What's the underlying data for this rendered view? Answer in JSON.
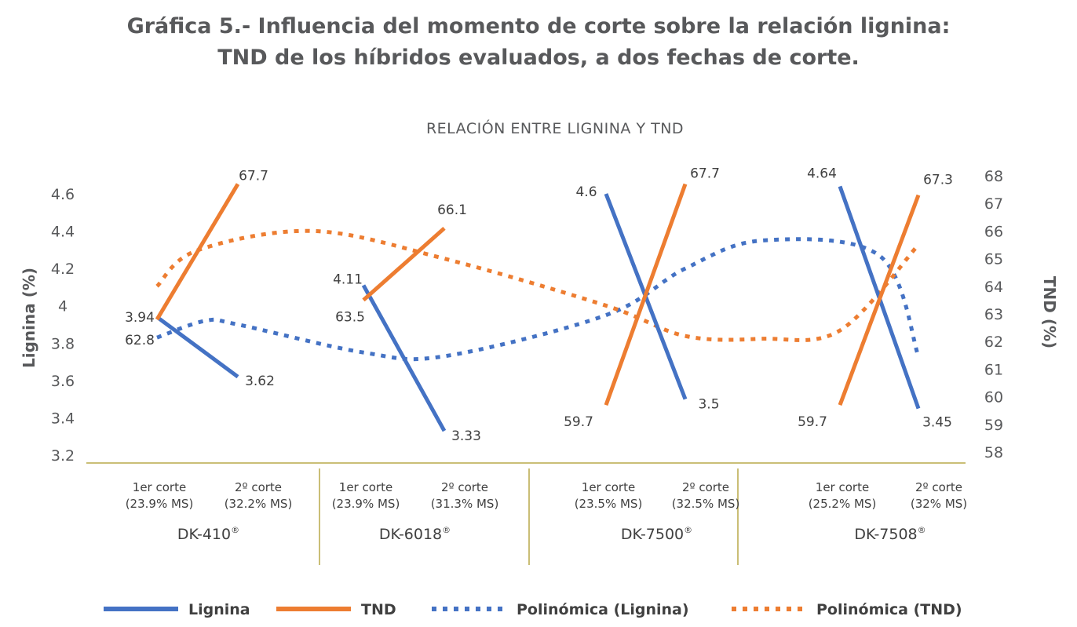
{
  "page_title": {
    "line1": "Gráfica 5.- Influencia del momento de corte sobre la relación lignina:",
    "line2": "TND de los híbridos evaluados, a dos fechas de corte."
  },
  "chart_data": {
    "type": "line",
    "title": "RELACIÓN ENTRE LIGNINA Y TND",
    "ylabel": "Lignina (%)",
    "y2label": "TND (%)",
    "ylim": [
      3.2,
      4.7
    ],
    "yticks": [
      "4.6",
      "4.4",
      "4.2",
      "4",
      "3.8",
      "3.6",
      "3.4",
      "3.2"
    ],
    "y2lim": [
      58,
      68.4
    ],
    "y2ticks": [
      "68",
      "67",
      "66",
      "65",
      "64",
      "63",
      "62",
      "61",
      "60",
      "59",
      "58"
    ],
    "groups": [
      {
        "name": "DK-410",
        "reg": "®",
        "subcategories": [
          {
            "line1": "1er corte",
            "line2": "(23.9% MS)"
          },
          {
            "line1": "2º corte",
            "line2": "(32.2% MS)"
          }
        ]
      },
      {
        "name": "DK-6018",
        "reg": "®",
        "subcategories": [
          {
            "line1": "1er corte",
            "line2": "(23.9% MS)"
          },
          {
            "line1": "2º corte",
            "line2": "(31.3% MS)"
          }
        ]
      },
      {
        "name": "DK-7500",
        "reg": "®",
        "subcategories": [
          {
            "line1": "1er corte",
            "line2": "(23.5% MS)"
          },
          {
            "line1": "2º corte",
            "line2": "(32.5% MS)"
          }
        ]
      },
      {
        "name": "DK-7508",
        "reg": "®",
        "subcategories": [
          {
            "line1": "1er corte",
            "line2": "(25.2% MS)"
          },
          {
            "line1": "2º corte",
            "line2": "(32% MS)"
          }
        ]
      }
    ],
    "series": [
      {
        "name": "Lignina",
        "axis": "left",
        "color": "#4472c4",
        "values": [
          3.94,
          3.62,
          4.11,
          3.33,
          4.6,
          3.5,
          4.64,
          3.45
        ],
        "labels": [
          "3.94",
          "3.62",
          "4.11",
          "3.33",
          "4.6",
          "3.5",
          "4.64",
          "3.45"
        ]
      },
      {
        "name": "TND",
        "axis": "right",
        "color": "#ed7d31",
        "values": [
          62.8,
          67.7,
          63.5,
          66.1,
          59.7,
          67.7,
          59.7,
          67.3
        ],
        "labels": [
          "62.8",
          "67.7",
          "63.5",
          "66.1",
          "59.7",
          "67.7",
          "59.7",
          "67.3"
        ]
      }
    ],
    "trendlines": [
      {
        "name": "Polinómica (Lignina)",
        "of": "Lignina",
        "axis": "left",
        "color": "#4472c4",
        "style": "dotted",
        "curve": [
          [
            0,
            3.83
          ],
          [
            0.6,
            3.92
          ],
          [
            1,
            3.9
          ],
          [
            2,
            3.75
          ],
          [
            3,
            3.73
          ],
          [
            4,
            3.95
          ],
          [
            5,
            4.2
          ],
          [
            5.5,
            4.35
          ],
          [
            6.5,
            4.27
          ],
          [
            7,
            3.73
          ]
        ]
      },
      {
        "name": "Polinómica (TND)",
        "of": "TND",
        "axis": "right",
        "color": "#ed7d31",
        "style": "dotted",
        "curve": [
          [
            0,
            64.0
          ],
          [
            0.5,
            65.3
          ],
          [
            1.6,
            66.0
          ],
          [
            3,
            65.0
          ],
          [
            4,
            63.3
          ],
          [
            5,
            62.2
          ],
          [
            5.5,
            62.1
          ],
          [
            6,
            62.4
          ],
          [
            7,
            65.5
          ]
        ]
      }
    ],
    "legend": {
      "position": "bottom"
    }
  }
}
